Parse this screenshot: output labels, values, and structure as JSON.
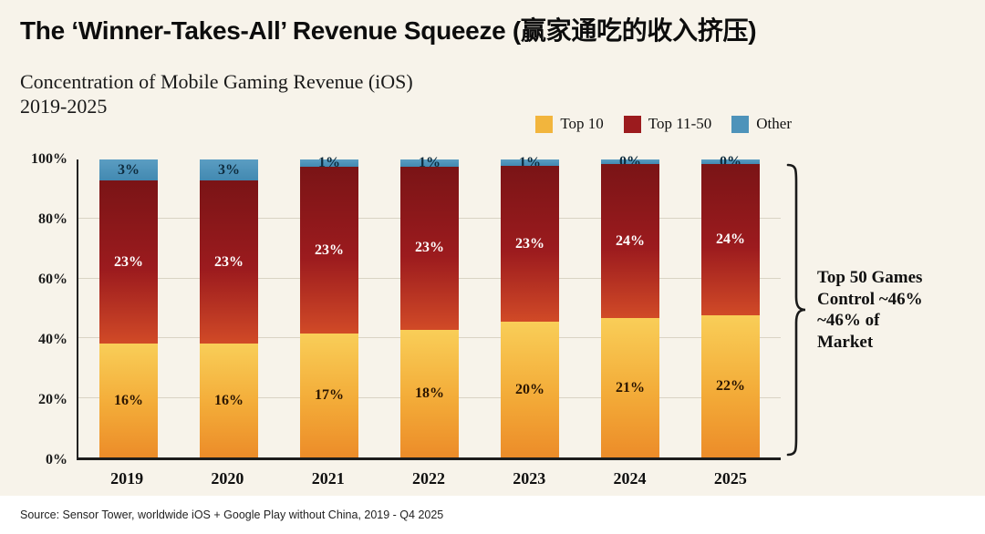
{
  "header": {
    "title": "The ‘Winner-Takes-All’ Revenue Squeeze (赢家通吃的收入挤压)",
    "subtitle_line1": "Concentration of Mobile Gaming Revenue (iOS)",
    "subtitle_line2": "2019-2025"
  },
  "chart_data": {
    "type": "bar",
    "stacked": true,
    "normalized_to_100": true,
    "categories": [
      "2019",
      "2020",
      "2021",
      "2022",
      "2023",
      "2024",
      "2025"
    ],
    "series": [
      {
        "name": "Top 10",
        "values": [
          16,
          16,
          17,
          18,
          20,
          21,
          22
        ],
        "color": "#f2b53d",
        "gradient_stops": [
          "#f9ce58",
          "#f3ab38 55%",
          "#ec8c29"
        ],
        "label_color": "#2a1500"
      },
      {
        "name": "Top 11-50",
        "values": [
          23,
          23,
          23,
          23,
          23,
          24,
          24
        ],
        "color": "#9c1b1e",
        "gradient_stops": [
          "#7a1416",
          "#9c1b1e 55%",
          "#d14a27"
        ],
        "label_color": "#ffffff"
      },
      {
        "name": "Other",
        "values": [
          3,
          3,
          1,
          1,
          1,
          0,
          0
        ],
        "color": "#4e93ba",
        "gradient_stops": [
          "#5b9dc2",
          "#4289b1"
        ],
        "label_color": "#0e2c3e"
      }
    ],
    "value_suffix": "%",
    "ytick_labels": [
      "100%",
      "80%",
      "60%",
      "40%",
      "20%",
      "0%"
    ],
    "ylim": [
      0,
      100
    ],
    "gridline_percents": [
      20,
      40,
      60,
      80
    ],
    "legend_position": "top-right",
    "annotation_lines": [
      "Top 50 Games",
      "Control ~46%",
      "~46% of",
      "Market"
    ]
  },
  "footer": {
    "source": "Source: Sensor Tower, worldwide iOS + Google Play without China, 2019 - Q4 2025"
  }
}
